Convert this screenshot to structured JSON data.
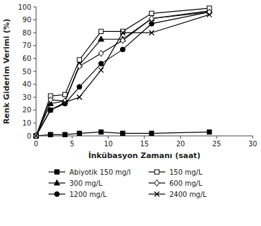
{
  "chart_data": {
    "type": "line",
    "xlabel": "İnkübasyon Zamanı (saat)",
    "ylabel": "Renk Giderim Verimi (%)",
    "x": [
      0,
      2,
      4,
      6,
      9,
      12,
      16,
      24
    ],
    "xlim": [
      0,
      30
    ],
    "xticks": [
      0,
      5,
      10,
      15,
      20,
      25,
      30
    ],
    "ylim": [
      0,
      100
    ],
    "yticks": [
      0,
      10,
      20,
      30,
      40,
      50,
      60,
      70,
      80,
      90,
      100
    ],
    "grid": false,
    "legend": "bottom",
    "line_style": "solid",
    "series": [
      {
        "name": "Abiyotik 150 mg/l",
        "color": "#000000",
        "marker": "square",
        "values": [
          0,
          1,
          1,
          2,
          3,
          2,
          2,
          3
        ]
      },
      {
        "name": "300 mg/L",
        "color": "#000000",
        "marker": "triangle",
        "values": [
          0,
          25,
          27,
          55,
          75,
          75,
          91,
          97
        ]
      },
      {
        "name": "1200 mg/L",
        "color": "#000000",
        "marker": "circle",
        "values": [
          0,
          20,
          25,
          38,
          56,
          67,
          87,
          96
        ]
      },
      {
        "name": "150 mg/L",
        "color": "#000000",
        "marker": "square-open",
        "values": [
          0,
          31,
          32,
          59,
          81,
          81,
          95,
          99
        ]
      },
      {
        "name": "600 mg/L",
        "color": "#000000",
        "marker": "diamond-open",
        "values": [
          0,
          28,
          27,
          54,
          64,
          74,
          91,
          96
        ]
      },
      {
        "name": "2400 mg/L",
        "color": "#000000",
        "marker": "x",
        "values": [
          0,
          20,
          26,
          30,
          51,
          80,
          80,
          94
        ]
      }
    ]
  }
}
